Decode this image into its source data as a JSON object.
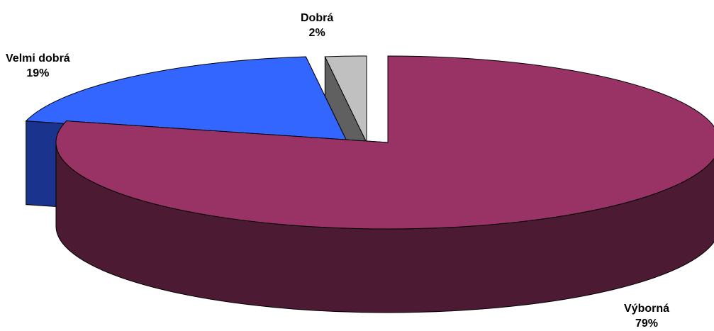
{
  "chart_data": {
    "type": "pie",
    "title": "",
    "three_d": true,
    "legend": "none",
    "slices": [
      {
        "label": "Výborná",
        "percent_label": "79%",
        "value": 79,
        "color": "#993366",
        "side_color": "#4d1a33",
        "exploded": false
      },
      {
        "label": "Velmi dobrá",
        "percent_label": "19%",
        "value": 19,
        "color": "#3366ff",
        "side_color": "#1a338c",
        "exploded": true
      },
      {
        "label": "Dobrá",
        "percent_label": "2%",
        "value": 2,
        "color": "#c0c0c0",
        "side_color": "#606060",
        "exploded": true
      }
    ]
  }
}
